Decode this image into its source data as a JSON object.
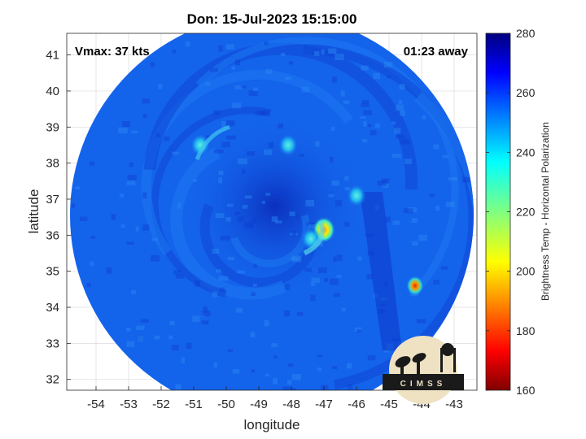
{
  "chart_data": {
    "type": "heatmap",
    "title": "Don: 15-Jul-2023 15:15:00",
    "xlabel": "longitude",
    "ylabel": "latitude",
    "xlim": [
      -54.9,
      -42.3
    ],
    "ylim": [
      31.7,
      41.6
    ],
    "x_ticks": [
      -54,
      -53,
      -52,
      -51,
      -50,
      -49,
      -48,
      -47,
      -46,
      -45,
      -44,
      -43
    ],
    "y_ticks": [
      32,
      33,
      34,
      35,
      36,
      37,
      38,
      39,
      40,
      41
    ],
    "grid": true,
    "colorbar": {
      "label": "Brightness Temp - Horizontal Polarization",
      "range": [
        160,
        280
      ],
      "ticks": [
        160,
        180,
        200,
        220,
        240,
        260,
        280
      ],
      "colormap": "jet"
    },
    "annotations": {
      "top_left": "Vmax: 37 kts",
      "top_right": "01:23 away"
    },
    "swath": {
      "center_lon": -48.6,
      "center_lat": 36.55,
      "radius_deg": 6.2,
      "background_value": 255
    },
    "features": [
      {
        "lon": -47.0,
        "lat": 36.15,
        "value": 214
      },
      {
        "lon": -44.2,
        "lat": 34.6,
        "value": 190
      },
      {
        "lon": -50.8,
        "lat": 38.5,
        "value": 236
      },
      {
        "lon": -47.4,
        "lat": 35.9,
        "value": 238
      },
      {
        "lon": -46.0,
        "lat": 37.1,
        "value": 238
      },
      {
        "lon": -48.1,
        "lat": 38.5,
        "value": 244
      }
    ],
    "logo_text": "CIMSS"
  },
  "colors": {
    "swath_base": "#1463eb",
    "cold_band": "#0d38c8",
    "background": "#ffffff"
  }
}
